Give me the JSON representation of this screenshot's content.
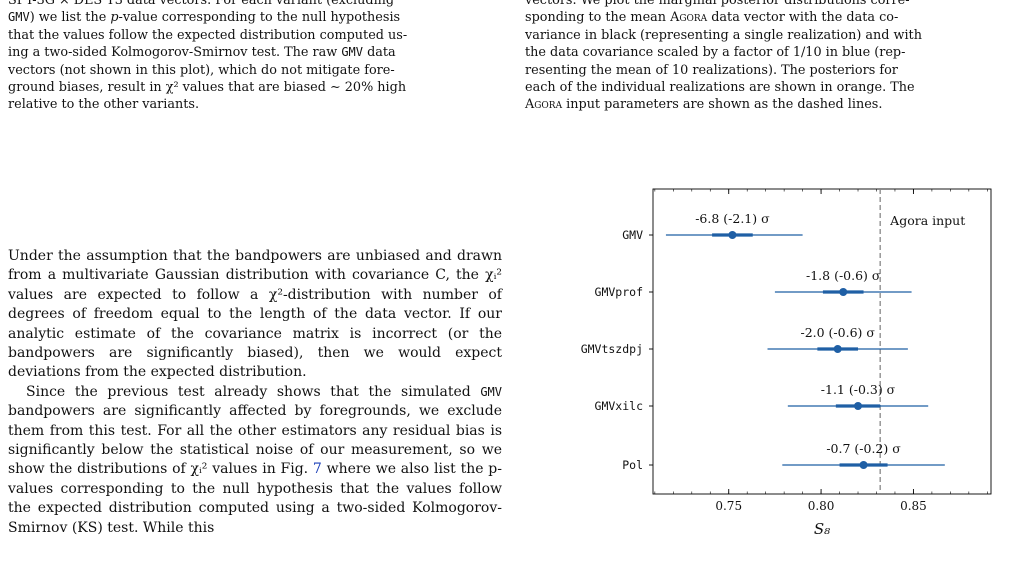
{
  "left_caption": {
    "l1": "SPT-3G × DES Y3 data vectors. For each variant (excluding",
    "l2a": "GMV",
    "l2b": ") we list the ",
    "l2c": "p",
    "l2d": "-value corresponding to the null hypothesis",
    "l3": "that the values follow the expected distribution computed us-",
    "l4": "ing a two-sided Kolmogorov-Smirnov test. The raw ",
    "l4b": "GMV",
    "l4c": " data",
    "l5": "vectors (not shown in this plot), which do not mitigate fore-",
    "l6": "ground biases, result in χ² values that are biased ∼ 20% high",
    "l7": "relative to the other variants."
  },
  "left_body": {
    "p1": "Under the assumption that the bandpowers are unbiased and drawn from a multivariate Gaussian distribution with covariance C, the χᵢ² values are expected to follow a χ²-distribution with number of degrees of freedom equal to the length of the data vector. If our analytic estimate of the covariance matrix is incorrect (or the bandpowers are significantly biased), then we would expect deviations from the expected distribution.",
    "p2a": "Since the previous test already shows that the simulated ",
    "p2b": "GMV",
    "p2c": " bandpowers are significantly affected by foregrounds, we exclude them from this test. For all the other estimators any residual bias is significantly below the statistical noise of our measurement, so we show the distributions of χᵢ² values in Fig. ",
    "p2d": "7",
    "p2e": " where we also list the p-values corresponding to the null hypothesis that the values follow the expected distribution computed using a two-sided Kolmogorov-Smirnov (KS) test. While this"
  },
  "right_caption": {
    "l1": "vectors. We plot the marginal posterior distributions corre-",
    "l2": "sponding to the mean ",
    "l2sc": "Agora",
    "l2b": " data vector with the data co-",
    "l3": "variance in black (representing a single realization) and with",
    "l4": "the data covariance scaled by a factor of 1/10 in blue (rep-",
    "l5": "resenting the mean of 10 realizations). The posteriors for",
    "l6": "each of the individual realizations are shown in orange. The",
    "l7sc": "Agora",
    "l7": " input parameters are shown as the dashed lines."
  },
  "chart_data": {
    "type": "scatter",
    "xlabel": "S₈",
    "xlim": [
      0.709,
      0.892
    ],
    "xticks": [
      "0.75",
      "0.80",
      "0.85"
    ],
    "xtick_values": [
      0.75,
      0.8,
      0.85
    ],
    "reference_line": {
      "x": 0.832,
      "label": "Agora input",
      "style": "dashed",
      "color": "#888888"
    },
    "color": "#1f5fa5",
    "rows": [
      {
        "label": "GMV",
        "annotation": "-6.8 (-2.1) σ",
        "center": 0.752,
        "inner": [
          0.741,
          0.763
        ],
        "outer": [
          0.716,
          0.79
        ]
      },
      {
        "label": "GMVprof",
        "annotation": "-1.8 (-0.6) σ",
        "center": 0.812,
        "inner": [
          0.801,
          0.823
        ],
        "outer": [
          0.775,
          0.849
        ]
      },
      {
        "label": "GMVtszdpj",
        "annotation": "-2.0 (-0.6) σ",
        "center": 0.809,
        "inner": [
          0.798,
          0.82
        ],
        "outer": [
          0.771,
          0.847
        ]
      },
      {
        "label": "GMVxilc",
        "annotation": "-1.1 (-0.3) σ",
        "center": 0.82,
        "inner": [
          0.808,
          0.832
        ],
        "outer": [
          0.782,
          0.858
        ]
      },
      {
        "label": "Pol",
        "annotation": "-0.7 (-0.2) σ",
        "center": 0.823,
        "inner": [
          0.81,
          0.836
        ],
        "outer": [
          0.779,
          0.867
        ]
      }
    ]
  }
}
